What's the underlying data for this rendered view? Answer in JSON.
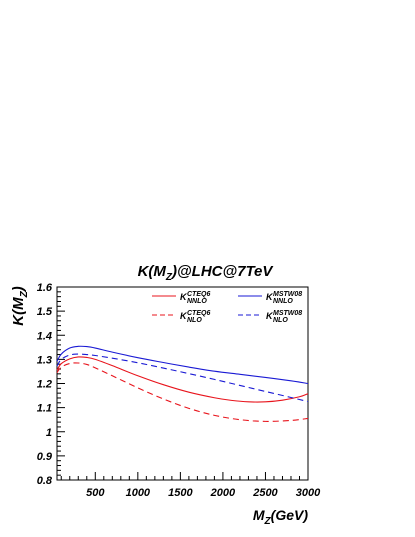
{
  "chart_data": {
    "type": "line",
    "title": {
      "main": "K(M",
      "sub": "Z",
      "tail": ")@LHC@7TeV"
    },
    "xlabel": {
      "main": "M",
      "sub": "Z",
      "tail": "(GeV)"
    },
    "ylabel": {
      "main": "K(M",
      "sub": "Z",
      "tail": ")"
    },
    "xlim": [
      50,
      3000
    ],
    "ylim": [
      0.8,
      1.6
    ],
    "xticks": [
      {
        "value": 500,
        "label": "500"
      },
      {
        "value": 1000,
        "label": "1000"
      },
      {
        "value": 1500,
        "label": "1500"
      },
      {
        "value": 2000,
        "label": "2000"
      },
      {
        "value": 2500,
        "label": "2500"
      },
      {
        "value": 3000,
        "label": "3000"
      }
    ],
    "yticks": [
      {
        "value": 0.8,
        "label": "0.8"
      },
      {
        "value": 0.9,
        "label": "0.9"
      },
      {
        "value": 1.0,
        "label": "1"
      },
      {
        "value": 1.1,
        "label": "1.1"
      },
      {
        "value": 1.2,
        "label": "1.2"
      },
      {
        "value": 1.3,
        "label": "1.3"
      },
      {
        "value": 1.4,
        "label": "1.4"
      },
      {
        "value": 1.5,
        "label": "1.5"
      },
      {
        "value": 1.6,
        "label": "1.6"
      }
    ],
    "grid": false,
    "legend_position": "top-right",
    "series": [
      {
        "id": "cteq6-nnlo",
        "name": "K",
        "sup": "CTEQ6",
        "sub": "NNLO",
        "color": "#e8141c",
        "dash": "solid",
        "x": [
          50,
          100,
          200,
          300,
          400,
          500,
          700,
          1000,
          1300,
          1600,
          1900,
          2100,
          2300,
          2500,
          2700,
          2900,
          3000
        ],
        "y": [
          1.255,
          1.282,
          1.302,
          1.31,
          1.308,
          1.3,
          1.274,
          1.232,
          1.195,
          1.164,
          1.141,
          1.13,
          1.124,
          1.124,
          1.131,
          1.145,
          1.158
        ]
      },
      {
        "id": "mstw08-nnlo",
        "name": "K",
        "sup": "MSTW08",
        "sub": "NNLO",
        "color": "#1a1ad4",
        "dash": "solid",
        "x": [
          50,
          100,
          200,
          300,
          400,
          500,
          700,
          1000,
          1300,
          1600,
          1900,
          2200,
          2500,
          2800,
          3000
        ],
        "y": [
          1.292,
          1.322,
          1.347,
          1.354,
          1.353,
          1.347,
          1.33,
          1.307,
          1.287,
          1.268,
          1.251,
          1.238,
          1.225,
          1.211,
          1.2
        ]
      },
      {
        "id": "cteq6-nlo",
        "name": "K",
        "sup": "CTEQ6",
        "sub": "NLO",
        "color": "#e8141c",
        "dash": "dashed",
        "x": [
          50,
          100,
          200,
          300,
          400,
          500,
          700,
          1000,
          1300,
          1600,
          1900,
          2200,
          2500,
          2800,
          3000
        ],
        "y": [
          1.245,
          1.268,
          1.283,
          1.285,
          1.279,
          1.265,
          1.232,
          1.182,
          1.136,
          1.097,
          1.068,
          1.05,
          1.043,
          1.047,
          1.055
        ]
      },
      {
        "id": "mstw08-nlo",
        "name": "K",
        "sup": "MSTW08",
        "sub": "NLO",
        "color": "#1a1ad4",
        "dash": "dashed",
        "x": [
          50,
          100,
          200,
          300,
          400,
          500,
          700,
          1000,
          1300,
          1600,
          1900,
          2200,
          2500,
          2800,
          3000
        ],
        "y": [
          1.272,
          1.3,
          1.318,
          1.322,
          1.32,
          1.316,
          1.305,
          1.286,
          1.264,
          1.241,
          1.217,
          1.192,
          1.167,
          1.142,
          1.125
        ]
      }
    ]
  }
}
